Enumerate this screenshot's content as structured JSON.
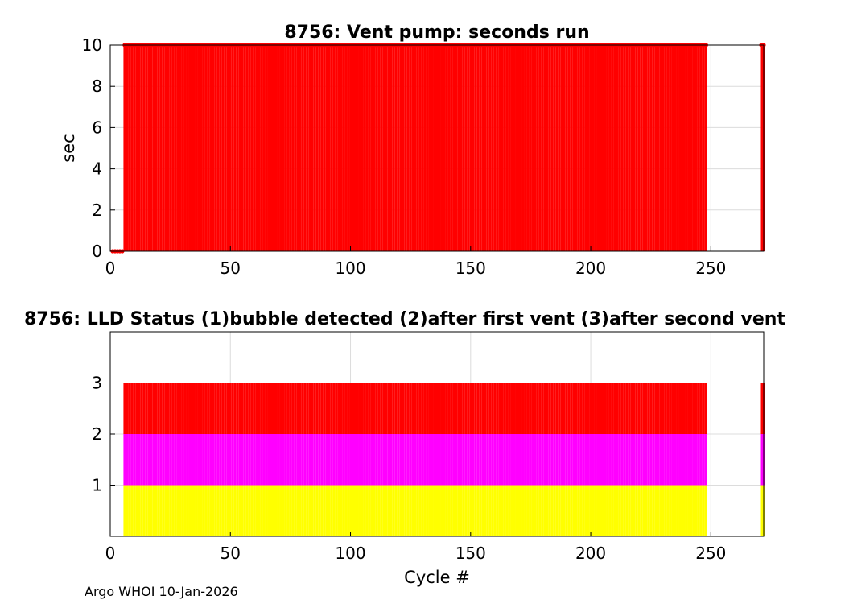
{
  "footer": "Argo WHOI 10-Jan-2026",
  "chart_data": [
    {
      "type": "bar",
      "title": "8756: Vent pump: seconds run",
      "xlabel": "",
      "ylabel": "sec",
      "xlim": [
        0,
        272
      ],
      "ylim": [
        0,
        10
      ],
      "xticks": [
        0,
        50,
        100,
        150,
        200,
        250
      ],
      "yticks": [
        0,
        2,
        4,
        6,
        8,
        10
      ],
      "grid": true,
      "color": "#ff0000",
      "marker": "dot",
      "series": [
        {
          "x_ranges": [
            [
              1,
              5
            ]
          ],
          "value": 0
        },
        {
          "x_ranges": [
            [
              6,
              248
            ],
            [
              271,
              272
            ]
          ],
          "value": 10
        }
      ]
    },
    {
      "type": "bar",
      "title": "8756: LLD Status   (1)bubble detected   (2)after first vent  (3)after second vent",
      "xlabel": "Cycle #",
      "ylabel": "",
      "xlim": [
        0,
        272
      ],
      "ylim": [
        0,
        4
      ],
      "xticks": [
        0,
        50,
        100,
        150,
        200,
        250
      ],
      "yticks": [
        1,
        2,
        3
      ],
      "grid": true,
      "series": [
        {
          "level": 1,
          "color": "#ffff00",
          "x_ranges": [
            [
              6,
              248
            ],
            [
              271,
              272
            ]
          ],
          "value": 1
        },
        {
          "level": 2,
          "color": "#ff00ff",
          "x_ranges": [
            [
              6,
              248
            ],
            [
              271,
              272
            ]
          ],
          "value": 2
        },
        {
          "level": 3,
          "color": "#ff0000",
          "x_ranges": [
            [
              6,
              248
            ],
            [
              271,
              272
            ]
          ],
          "value": 3
        }
      ]
    }
  ]
}
